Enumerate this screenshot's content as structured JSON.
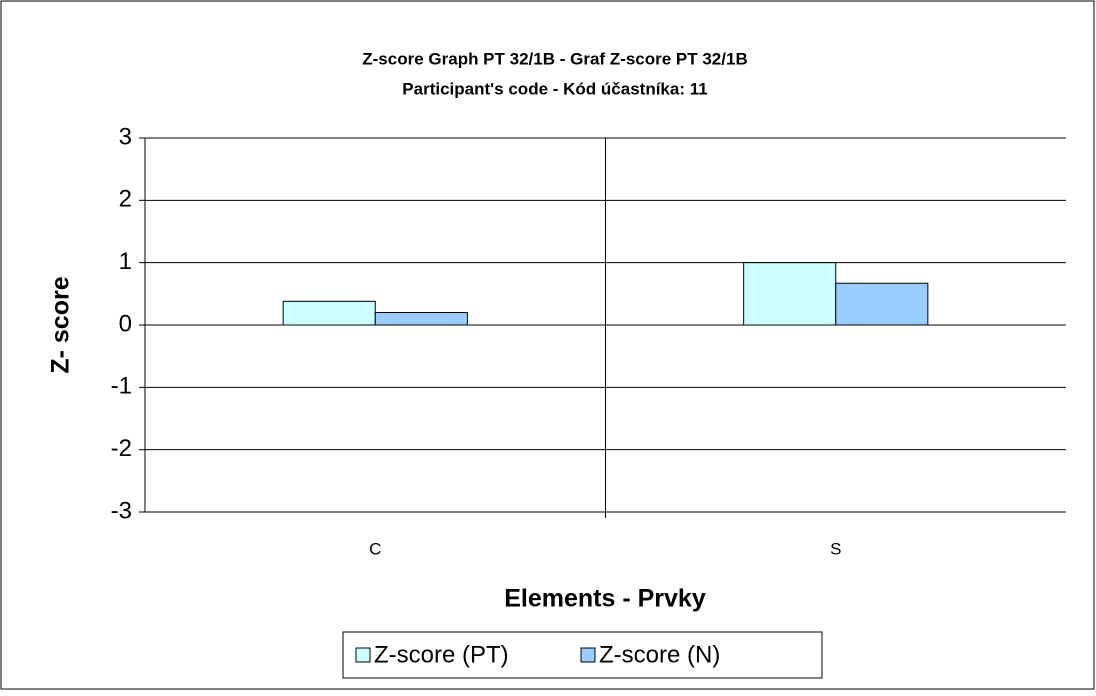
{
  "chart_data": {
    "type": "bar",
    "title": "Z-score Graph PT 32/1B - Graf Z-score PT 32/1B",
    "subtitle": "Participant's code - Kód účastníka:  11",
    "x_label": "Elements - Prvky",
    "y_label": "Z- score",
    "categories": [
      "C",
      "S"
    ],
    "series": [
      {
        "name": "Z-score (PT)",
        "color": "#ccffff",
        "values": [
          0.38,
          1.0
        ]
      },
      {
        "name": "Z-score (N)",
        "color": "#99ccff",
        "values": [
          0.2,
          0.67
        ]
      }
    ],
    "ylim": [
      -3,
      3
    ],
    "yticks": [
      -3,
      -2,
      -1,
      0,
      1,
      2,
      3
    ],
    "grid": true,
    "legend": "bottom"
  }
}
